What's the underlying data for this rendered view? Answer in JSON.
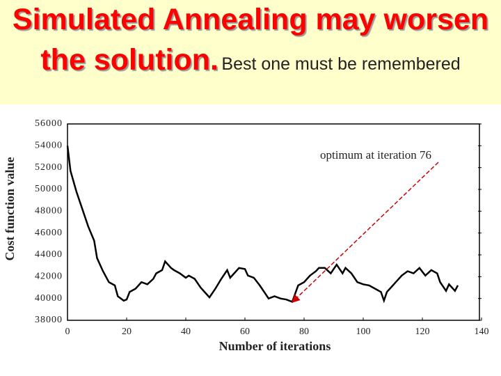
{
  "slide": {
    "title": "Simulated Annealing may worsen the solution.",
    "subtitle": "Best one must be remembered"
  },
  "chart_data": {
    "type": "line",
    "ylabel": "Cost function value",
    "xlabel": "Number of iterations",
    "annotation": "optimum at iteration 76",
    "color": "#000000",
    "arrow_color": "#cc0000",
    "x": [
      0,
      1,
      3,
      5,
      7,
      9,
      10,
      12,
      14,
      16,
      17,
      19,
      20,
      21,
      23,
      25,
      27,
      29,
      30,
      32,
      33,
      35,
      36,
      38,
      40,
      41,
      43,
      45,
      47,
      48,
      50,
      52,
      54,
      55,
      57,
      58,
      60,
      61,
      63,
      65,
      67,
      68,
      70,
      72,
      74,
      76,
      78,
      80,
      82,
      84,
      85,
      87,
      89,
      91,
      93,
      94,
      96,
      98,
      100,
      102,
      104,
      106,
      107,
      108,
      109,
      111,
      113,
      115,
      117,
      119,
      121,
      123,
      125,
      126,
      128,
      129,
      131,
      132
    ],
    "values": [
      54000,
      51700,
      49800,
      48200,
      46600,
      45300,
      43700,
      42500,
      41500,
      41200,
      40200,
      39800,
      39900,
      40600,
      40900,
      41500,
      41300,
      41800,
      42300,
      42600,
      43400,
      42800,
      42600,
      42300,
      41900,
      42100,
      41800,
      41000,
      40400,
      40100,
      40900,
      41800,
      42600,
      41900,
      42500,
      42800,
      42700,
      42100,
      41900,
      41200,
      40400,
      40000,
      40200,
      40000,
      39900,
      39700,
      41200,
      41500,
      42100,
      42500,
      42800,
      42800,
      42300,
      43100,
      42300,
      42800,
      42300,
      41500,
      41300,
      41200,
      40900,
      40600,
      39800,
      40600,
      40900,
      41500,
      42100,
      42500,
      42300,
      42800,
      42100,
      42600,
      42300,
      41500,
      40700,
      41300,
      40700,
      41200
    ],
    "xlim": [
      0,
      140
    ],
    "xticks": [
      0,
      20,
      40,
      60,
      80,
      100,
      120,
      140
    ],
    "ylim": [
      38000,
      56000
    ],
    "yticks": [
      38000,
      40000,
      42000,
      44000,
      46000,
      48000,
      50000,
      52000,
      54000,
      56000
    ]
  }
}
